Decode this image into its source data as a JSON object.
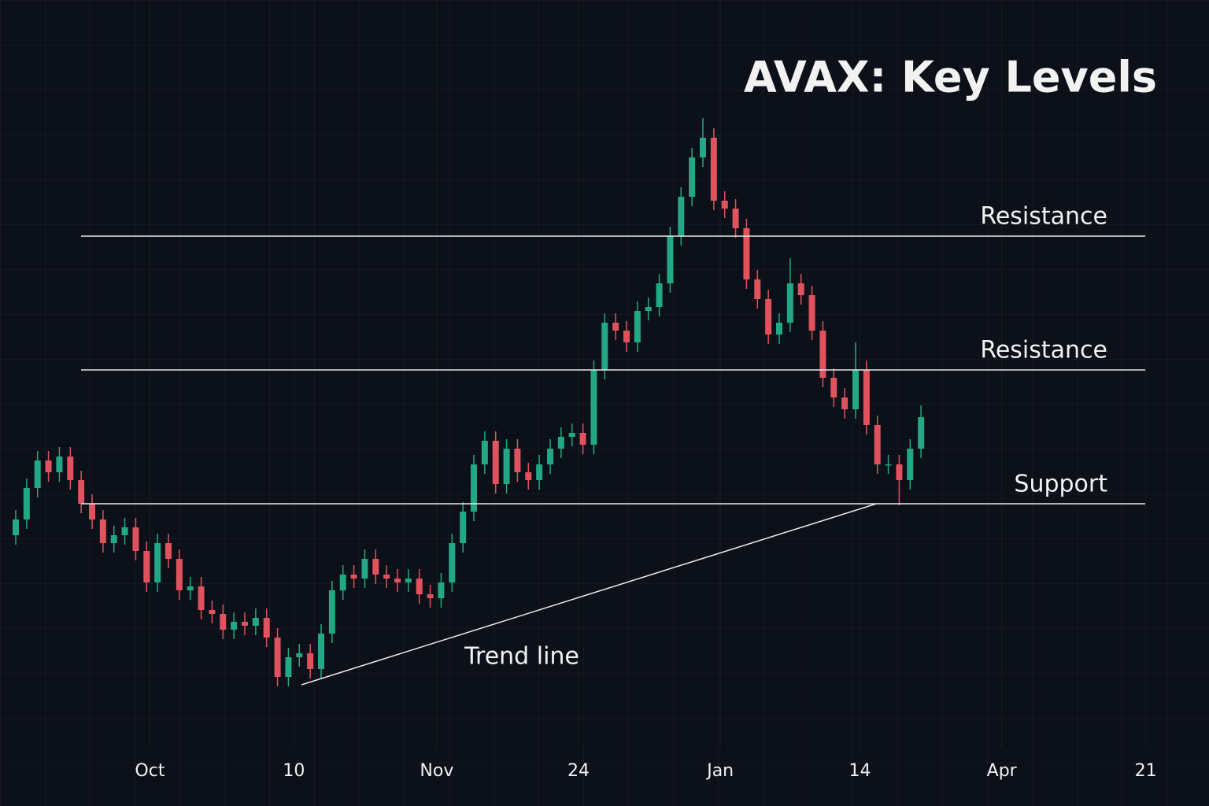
{
  "chart_data": {
    "type": "candlestick",
    "title": "AVAX: Key Levels",
    "up_color": "#22a884",
    "down_color": "#e0525e",
    "xlim": [
      0,
      105
    ],
    "ylim": [
      0,
      1000
    ],
    "xticks": [
      {
        "value": 12.3,
        "label": "Oct"
      },
      {
        "value": 25.5,
        "label": "10"
      },
      {
        "value": 38.6,
        "label": "Nov"
      },
      {
        "value": 51.6,
        "label": "24"
      },
      {
        "value": 64.6,
        "label": "Jan"
      },
      {
        "value": 77.4,
        "label": "14"
      },
      {
        "value": 90.4,
        "label": "Apr"
      },
      {
        "value": 103.6,
        "label": "21"
      }
    ],
    "x": [
      0,
      1,
      2,
      3,
      4,
      5,
      6,
      7,
      8,
      9,
      10,
      11,
      12,
      13,
      14,
      15,
      16,
      17,
      18,
      19,
      20,
      21,
      22,
      23,
      24,
      25,
      26,
      27,
      28,
      29,
      30,
      31,
      32,
      33,
      34,
      35,
      36,
      37,
      38,
      39,
      40,
      41,
      42,
      43,
      44,
      45,
      46,
      47,
      48,
      49,
      50,
      51,
      52,
      53,
      54,
      55,
      56,
      57,
      58,
      59,
      60,
      61,
      62,
      63,
      64,
      65,
      66,
      67,
      68,
      69,
      70,
      71,
      72,
      73,
      74,
      75,
      76,
      77,
      78,
      79,
      80,
      81,
      82,
      83
    ],
    "open": [
      320,
      340,
      380,
      415,
      400,
      420,
      390,
      360,
      340,
      310,
      320,
      330,
      300,
      260,
      310,
      290,
      250,
      255,
      225,
      220,
      200,
      210,
      205,
      215,
      190,
      140,
      165,
      170,
      150,
      195,
      250,
      270,
      265,
      290,
      270,
      265,
      260,
      265,
      245,
      240,
      260,
      310,
      350,
      410,
      440,
      385,
      430,
      400,
      390,
      410,
      430,
      445,
      450,
      435,
      530,
      590,
      580,
      565,
      605,
      610,
      640,
      700,
      750,
      800,
      825,
      745,
      735,
      710,
      645,
      620,
      575,
      590,
      640,
      625,
      580,
      520,
      495,
      480,
      530,
      460,
      410,
      410,
      390,
      430
    ],
    "high": [
      352,
      392,
      427,
      427,
      432,
      432,
      402,
      372,
      352,
      332,
      342,
      342,
      312,
      322,
      322,
      302,
      267,
      267,
      237,
      232,
      222,
      222,
      227,
      227,
      202,
      177,
      182,
      182,
      207,
      262,
      282,
      282,
      302,
      302,
      282,
      277,
      277,
      277,
      257,
      272,
      322,
      362,
      422,
      452,
      452,
      442,
      442,
      412,
      422,
      442,
      457,
      462,
      462,
      542,
      602,
      602,
      592,
      617,
      622,
      652,
      712,
      762,
      812,
      850,
      837,
      757,
      747,
      722,
      657,
      632,
      602,
      672,
      652,
      637,
      592,
      532,
      507,
      565,
      542,
      472,
      422,
      422,
      442,
      485
    ],
    "low": [
      308,
      328,
      368,
      388,
      388,
      378,
      348,
      328,
      298,
      298,
      308,
      288,
      248,
      248,
      278,
      238,
      238,
      213,
      208,
      188,
      188,
      193,
      193,
      178,
      128,
      128,
      153,
      138,
      138,
      183,
      238,
      253,
      253,
      258,
      253,
      248,
      248,
      233,
      228,
      228,
      248,
      298,
      338,
      398,
      373,
      373,
      388,
      378,
      378,
      398,
      418,
      433,
      423,
      423,
      518,
      568,
      553,
      553,
      593,
      598,
      628,
      688,
      738,
      788,
      733,
      723,
      698,
      633,
      608,
      563,
      563,
      578,
      613,
      568,
      508,
      483,
      468,
      468,
      448,
      398,
      398,
      358,
      378,
      418
    ],
    "close": [
      340,
      380,
      415,
      400,
      420,
      390,
      360,
      340,
      310,
      320,
      330,
      300,
      260,
      310,
      290,
      250,
      255,
      225,
      220,
      200,
      210,
      205,
      215,
      190,
      140,
      165,
      170,
      150,
      195,
      250,
      270,
      265,
      290,
      270,
      265,
      260,
      265,
      245,
      240,
      260,
      310,
      350,
      410,
      440,
      385,
      430,
      400,
      390,
      410,
      430,
      445,
      450,
      435,
      530,
      590,
      580,
      565,
      605,
      610,
      640,
      700,
      750,
      800,
      825,
      745,
      735,
      710,
      645,
      620,
      575,
      590,
      640,
      625,
      580,
      520,
      495,
      480,
      530,
      460,
      410,
      410,
      390,
      430,
      470
    ],
    "levels": [
      {
        "label": "Resistance",
        "value": 700
      },
      {
        "label": "Resistance",
        "value": 530
      },
      {
        "label": "Support",
        "value": 360
      }
    ],
    "trend": {
      "label": "Trend line",
      "x": [
        26.2,
        78.9
      ],
      "values": [
        130,
        360
      ]
    }
  }
}
